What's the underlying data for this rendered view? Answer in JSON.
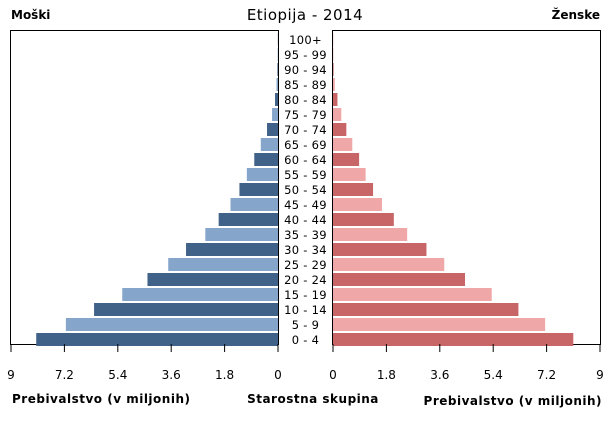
{
  "chart_data": {
    "type": "bar",
    "title": "Etiopija - 2014",
    "left_label": "Moški",
    "right_label": "Ženske",
    "xlabel_left": "Prebivalstvo  (v miljonih)",
    "xlabel_center": "Starostna skupina",
    "xlabel_right": "Prebivalstvo (v miljonih)",
    "xlim": [
      0,
      9
    ],
    "x_ticks": [
      "9",
      "7.2",
      "5.4",
      "3.6",
      "1.8",
      "0"
    ],
    "x_ticks_right": [
      "0",
      "1.8",
      "3.6",
      "5.4",
      "7.2",
      "9"
    ],
    "tick_values": [
      9,
      7.2,
      5.4,
      3.6,
      1.8,
      0
    ],
    "tick_values_right": [
      0,
      1.8,
      3.6,
      5.4,
      7.2,
      9
    ],
    "categories": [
      "100+",
      "95 - 99",
      "90 - 94",
      "85 - 89",
      "80 - 84",
      "75 - 79",
      "70 - 74",
      "65 - 69",
      "60 - 64",
      "55 - 59",
      "50 - 54",
      "45 - 49",
      "40 - 44",
      "35 - 39",
      "30 - 34",
      "25 - 29",
      "20 - 24",
      "15 - 19",
      "10 - 14",
      "5 - 9",
      "0 - 4"
    ],
    "series": [
      {
        "name": "Moški",
        "values": [
          0.005,
          0.01,
          0.02,
          0.05,
          0.1,
          0.2,
          0.37,
          0.58,
          0.8,
          1.05,
          1.3,
          1.6,
          2.0,
          2.45,
          3.1,
          3.7,
          4.4,
          5.25,
          6.2,
          7.15,
          8.15
        ]
      },
      {
        "name": "Ženske",
        "values": [
          0.005,
          0.01,
          0.02,
          0.06,
          0.15,
          0.28,
          0.45,
          0.65,
          0.88,
          1.1,
          1.35,
          1.65,
          2.05,
          2.5,
          3.15,
          3.75,
          4.45,
          5.35,
          6.25,
          7.15,
          8.1
        ]
      }
    ],
    "colors": {
      "male_dark": "#416288",
      "male_light": "#85a5cb",
      "female_dark": "#c86567",
      "female_light": "#f0a7a8"
    },
    "grid": false
  }
}
